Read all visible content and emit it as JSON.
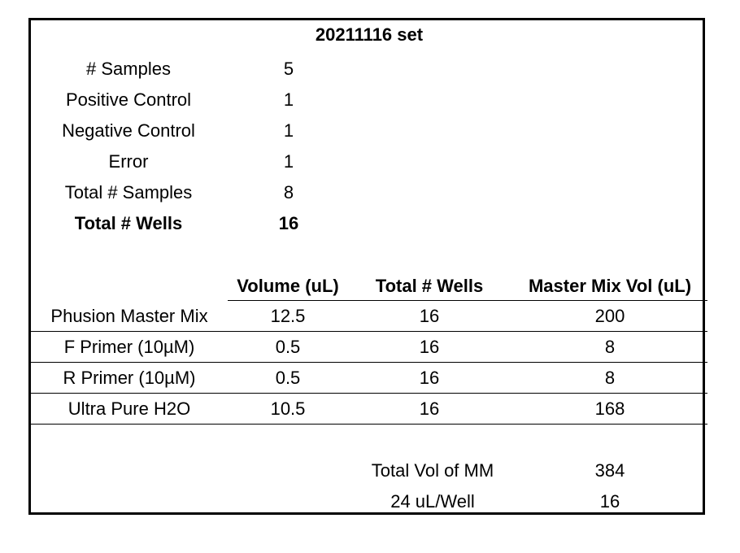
{
  "title": "20211116 set",
  "summary": [
    {
      "label": "# Samples",
      "value": "5",
      "bold": false
    },
    {
      "label": "Positive Control",
      "value": "1",
      "bold": false
    },
    {
      "label": "Negative Control",
      "value": "1",
      "bold": false
    },
    {
      "label": "Error",
      "value": "1",
      "bold": false
    },
    {
      "label": "Total # Samples",
      "value": "8",
      "bold": false
    },
    {
      "label": "Total # Wells",
      "value": "16",
      "bold": true
    }
  ],
  "table": {
    "headers": [
      "",
      "Volume (uL)",
      "Total # Wells",
      "Master Mix Vol (uL)"
    ],
    "rows": [
      [
        "Phusion Master Mix",
        "12.5",
        "16",
        "200"
      ],
      [
        "F Primer (10µM)",
        "0.5",
        "16",
        "8"
      ],
      [
        "R Primer (10µM)",
        "0.5",
        "16",
        "8"
      ],
      [
        "Ultra Pure H2O",
        "10.5",
        "16",
        "168"
      ]
    ]
  },
  "totals": [
    {
      "label": "Total Vol of MM",
      "value": "384"
    },
    {
      "label": "24 uL/Well",
      "value": "16"
    }
  ]
}
